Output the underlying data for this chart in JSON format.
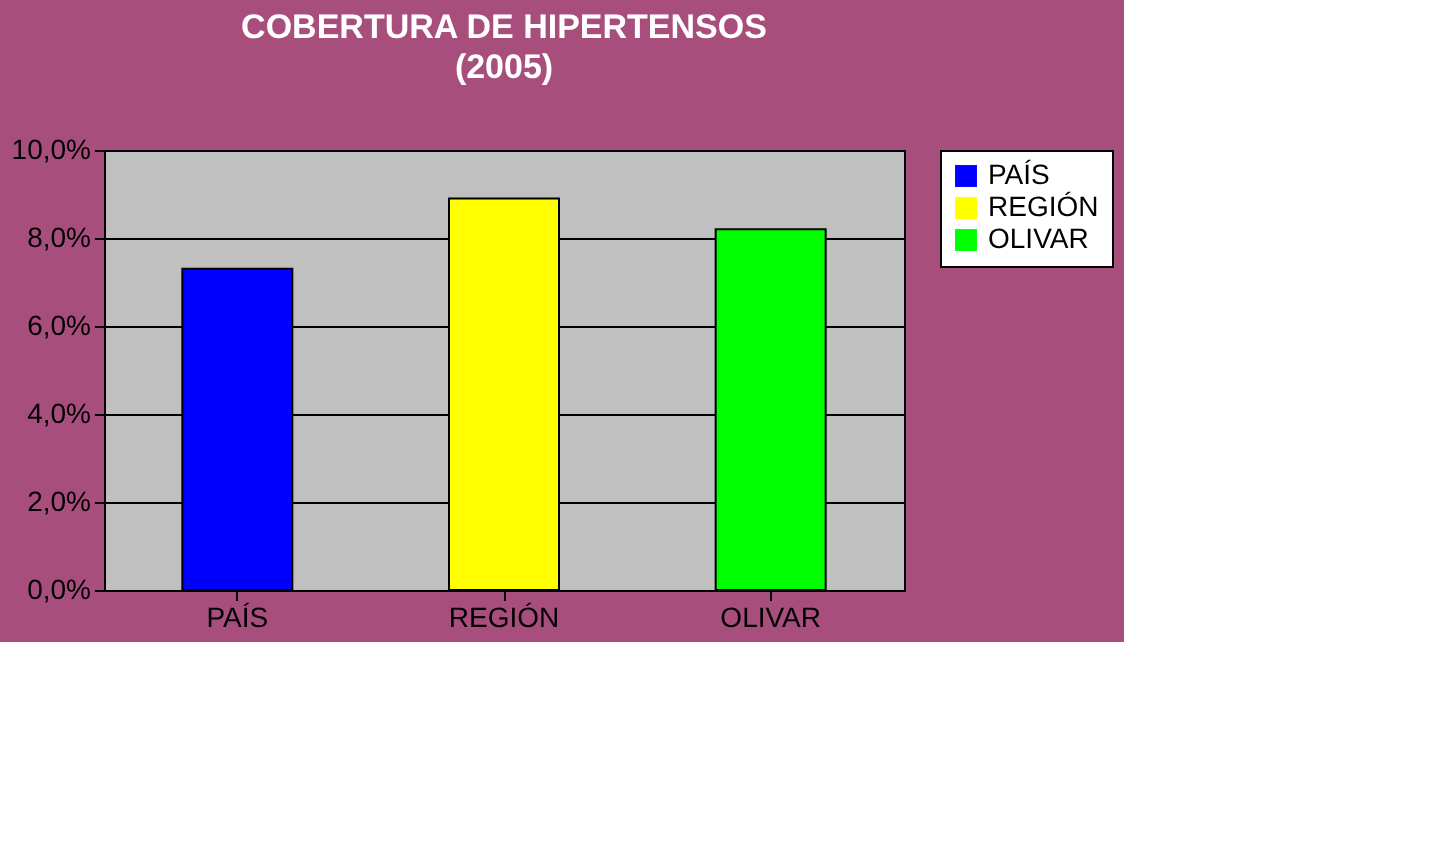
{
  "chart_data": {
    "type": "bar",
    "title": "COBERTURA DE HIPERTENSOS",
    "subtitle": "(2005)",
    "categories": [
      "PAÍS",
      "REGIÓN",
      "OLIVAR"
    ],
    "series": [
      {
        "name": "PAÍS",
        "color": "#0000ff",
        "values": [
          7.3,
          null,
          null
        ]
      },
      {
        "name": "REGIÓN",
        "color": "#ffff00",
        "values": [
          null,
          8.9,
          null
        ]
      },
      {
        "name": "OLIVAR",
        "color": "#00ff00",
        "values": [
          null,
          null,
          8.2
        ]
      }
    ],
    "ylim": [
      0,
      10
    ],
    "yticks": [
      {
        "value": 0,
        "label": "0,0%"
      },
      {
        "value": 2,
        "label": "2,0%"
      },
      {
        "value": 4,
        "label": "4,0%"
      },
      {
        "value": 6,
        "label": "6,0%"
      },
      {
        "value": 8,
        "label": "8,0%"
      },
      {
        "value": 10,
        "label": "10,0%"
      }
    ],
    "grid": "y",
    "legend": "right"
  }
}
